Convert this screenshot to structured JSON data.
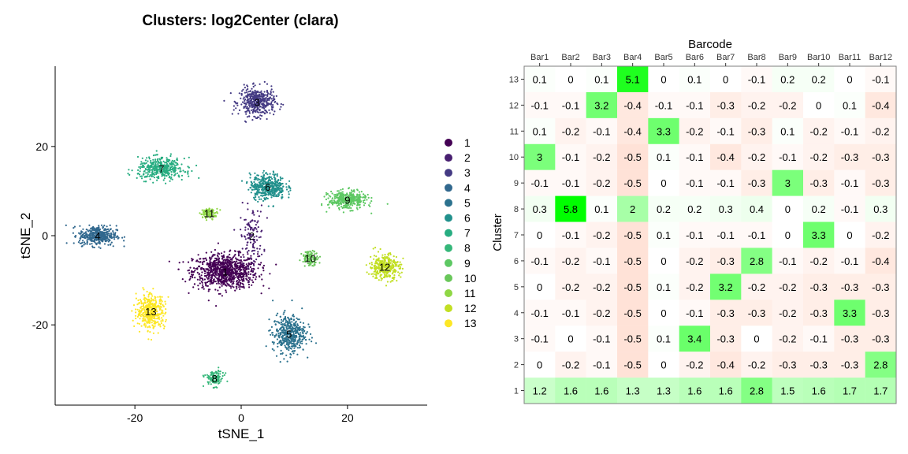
{
  "chart_data": [
    {
      "type": "scatter",
      "title": "Clusters: log2Center (clara)",
      "xlabel": "tSNE_1",
      "ylabel": "tSNE_2",
      "xlim": [
        -35,
        35
      ],
      "ylim": [
        -38,
        38
      ],
      "x_ticks": [
        -20,
        0,
        20
      ],
      "y_ticks": [
        -20,
        0,
        20
      ],
      "legend_position": "right",
      "clusters": [
        {
          "name": "1",
          "color": "#440154",
          "x": -3,
          "y": -8,
          "sx": 5.5,
          "sy": 3.5,
          "n": 900
        },
        {
          "name": "2",
          "color": "#481F70",
          "x": 2,
          "y": 0,
          "sx": 2.0,
          "sy": 6.0,
          "n": 120
        },
        {
          "name": "3",
          "color": "#443A83",
          "x": 3,
          "y": 30,
          "sx": 3.0,
          "sy": 2.8,
          "n": 420
        },
        {
          "name": "4",
          "color": "#31688E",
          "x": -27,
          "y": 0,
          "sx": 3.2,
          "sy": 2.0,
          "n": 400
        },
        {
          "name": "5",
          "color": "#2C728E",
          "x": 9,
          "y": -22,
          "sx": 2.8,
          "sy": 3.8,
          "n": 450
        },
        {
          "name": "6",
          "color": "#21908C",
          "x": 5,
          "y": 11,
          "sx": 3.0,
          "sy": 2.6,
          "n": 420
        },
        {
          "name": "7",
          "color": "#27AD81",
          "x": -15,
          "y": 15,
          "sx": 4.0,
          "sy": 2.2,
          "n": 400
        },
        {
          "name": "8",
          "color": "#35B779",
          "x": -5,
          "y": -32,
          "sx": 1.6,
          "sy": 1.6,
          "n": 110
        },
        {
          "name": "9",
          "color": "#5DC863",
          "x": 20,
          "y": 8,
          "sx": 3.2,
          "sy": 1.8,
          "n": 380
        },
        {
          "name": "10",
          "color": "#69C75A",
          "x": 13,
          "y": -5,
          "sx": 1.4,
          "sy": 1.4,
          "n": 120
        },
        {
          "name": "11",
          "color": "#8FD744",
          "x": -6,
          "y": 5,
          "sx": 1.5,
          "sy": 1.0,
          "n": 90
        },
        {
          "name": "12",
          "color": "#C2DF23",
          "x": 27,
          "y": -7,
          "sx": 2.6,
          "sy": 2.6,
          "n": 330
        },
        {
          "name": "13",
          "color": "#FDE725",
          "x": -17,
          "y": -17,
          "sx": 2.4,
          "sy": 3.4,
          "n": 420
        }
      ]
    },
    {
      "type": "heatmap",
      "xlabel": "Barcode",
      "ylabel": "Cluster",
      "x_position": "top",
      "columns": [
        "Bar1",
        "Bar2",
        "Bar3",
        "Bar4",
        "Bar5",
        "Bar6",
        "Bar7",
        "Bar8",
        "Bar9",
        "Bar10",
        "Bar11",
        "Bar12"
      ],
      "rows": [
        "13",
        "12",
        "11",
        "10",
        "9",
        "8",
        "7",
        "6",
        "5",
        "4",
        "3",
        "2",
        "1"
      ],
      "values": [
        [
          0.1,
          0,
          0.1,
          5.1,
          0,
          0.1,
          0,
          -0.1,
          0.2,
          0.2,
          0,
          -0.1
        ],
        [
          -0.1,
          -0.1,
          3.2,
          -0.4,
          -0.1,
          -0.1,
          -0.3,
          -0.2,
          -0.2,
          0,
          0.1,
          -0.4
        ],
        [
          0.1,
          -0.2,
          -0.1,
          -0.4,
          3.3,
          -0.2,
          -0.1,
          -0.3,
          0.1,
          -0.2,
          -0.1,
          -0.2
        ],
        [
          3,
          -0.1,
          -0.2,
          -0.5,
          0.1,
          -0.1,
          -0.4,
          -0.2,
          -0.1,
          -0.2,
          -0.3,
          -0.3
        ],
        [
          -0.1,
          -0.1,
          -0.2,
          -0.5,
          0,
          -0.1,
          -0.1,
          -0.3,
          3,
          -0.3,
          -0.1,
          -0.3
        ],
        [
          0.3,
          5.8,
          0.1,
          2,
          0.2,
          0.2,
          0.3,
          0.4,
          0,
          0.2,
          -0.1,
          0.3
        ],
        [
          0,
          -0.1,
          -0.2,
          -0.5,
          0.1,
          -0.1,
          -0.1,
          -0.1,
          0,
          3.3,
          0,
          -0.2
        ],
        [
          -0.1,
          -0.2,
          -0.1,
          -0.5,
          0,
          -0.2,
          -0.3,
          2.8,
          -0.1,
          -0.2,
          -0.1,
          -0.4
        ],
        [
          0,
          -0.2,
          -0.2,
          -0.5,
          0.1,
          -0.2,
          3.2,
          -0.2,
          -0.2,
          -0.3,
          -0.3,
          -0.3
        ],
        [
          -0.1,
          -0.1,
          -0.2,
          -0.5,
          0,
          -0.1,
          -0.3,
          -0.3,
          -0.2,
          -0.3,
          3.3,
          -0.3
        ],
        [
          -0.1,
          0,
          -0.1,
          -0.5,
          0.1,
          3.4,
          -0.3,
          0,
          -0.2,
          -0.1,
          -0.3,
          -0.3
        ],
        [
          0,
          -0.2,
          -0.1,
          -0.5,
          0,
          -0.2,
          -0.4,
          -0.2,
          -0.3,
          -0.3,
          -0.3,
          2.8
        ],
        [
          1.2,
          1.6,
          1.6,
          1.3,
          1.3,
          1.6,
          1.6,
          2.8,
          1.5,
          1.6,
          1.7,
          1.7
        ]
      ],
      "color_low": "#FF7F50",
      "color_mid": "#FFFFFF",
      "color_high": "#00FF00"
    }
  ]
}
